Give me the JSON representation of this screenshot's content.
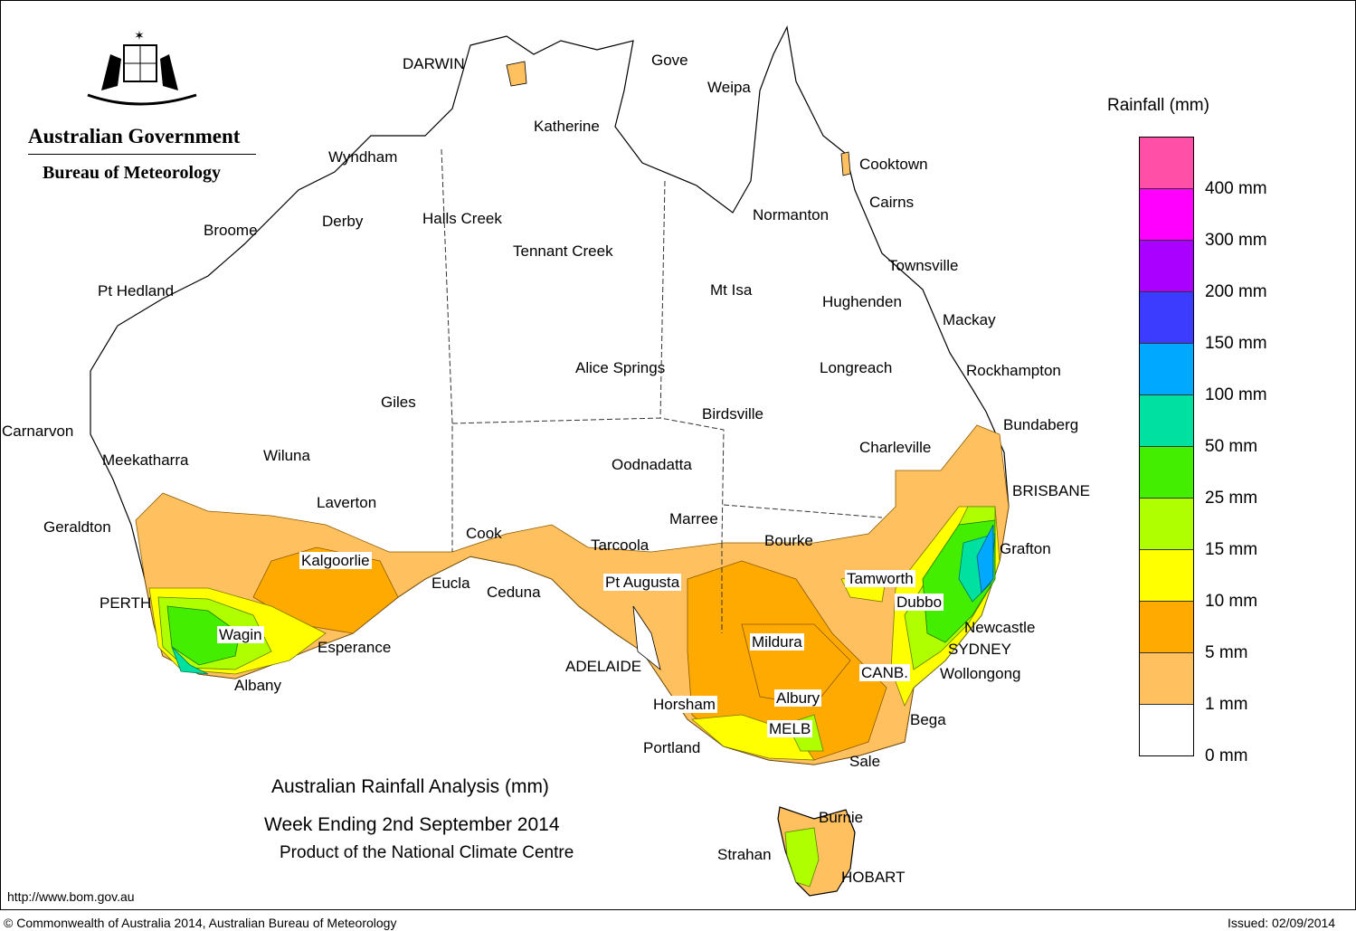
{
  "logo": {
    "government": "Australian Government",
    "agency": "Bureau of Meteorology"
  },
  "title": {
    "line1": "Australian Rainfall Analysis (mm)",
    "line2": "Week Ending 2nd September 2014",
    "line3": "Product of the National Climate Centre"
  },
  "legend": {
    "title": "Rainfall (mm)",
    "labels": [
      "400 mm",
      "300 mm",
      "200 mm",
      "150 mm",
      "100 mm",
      "50 mm",
      "25 mm",
      "15 mm",
      "10 mm",
      "5 mm",
      "1 mm",
      "0 mm"
    ],
    "colors": [
      "#ff4fa7",
      "#ff00ff",
      "#aa00ff",
      "#3c3cff",
      "#00a8ff",
      "#00e0a0",
      "#44ee00",
      "#b0ff00",
      "#ffff00",
      "#ffaa00",
      "#ffc060",
      "#ffffff"
    ]
  },
  "places": {
    "darwin": "DARWIN",
    "gove": "Gove",
    "weipa": "Weipa",
    "katherine": "Katherine",
    "wyndham": "Wyndham",
    "cooktown": "Cooktown",
    "cairns": "Cairns",
    "normanton": "Normanton",
    "broome": "Broome",
    "derby": "Derby",
    "halls_creek": "Halls Creek",
    "tennant_creek": "Tennant Creek",
    "townsville": "Townsville",
    "pt_hedland": "Pt Hedland",
    "mt_isa": "Mt Isa",
    "hughenden": "Hughenden",
    "mackay": "Mackay",
    "alice_springs": "Alice Springs",
    "longreach": "Longreach",
    "rockhampton": "Rockhampton",
    "giles": "Giles",
    "birdsville": "Birdsville",
    "carnarvon": "Carnarvon",
    "bundaberg": "Bundaberg",
    "meekatharra": "Meekatharra",
    "wiluna": "Wiluna",
    "oodnadatta": "Oodnadatta",
    "charleville": "Charleville",
    "brisbane": "BRISBANE",
    "laverton": "Laverton",
    "geraldton": "Geraldton",
    "marree": "Marree",
    "cook": "Cook",
    "tarcoola": "Tarcoola",
    "bourke": "Bourke",
    "grafton": "Grafton",
    "kalgoorlie": "Kalgoorlie",
    "eucla": "Eucla",
    "pt_augusta": "Pt Augusta",
    "tamworth": "Tamworth",
    "ceduna": "Ceduna",
    "perth": "PERTH",
    "dubbo": "Dubbo",
    "newcastle": "Newcastle",
    "wagin": "Wagin",
    "mildura": "Mildura",
    "esperance": "Esperance",
    "sydney": "SYDNEY",
    "adelaide": "ADELAIDE",
    "canberra": "CANB.",
    "wollongong": "Wollongong",
    "albany": "Albany",
    "albury": "Albury",
    "horsham": "Horsham",
    "bega": "Bega",
    "melbourne": "MELB",
    "portland": "Portland",
    "sale": "Sale",
    "burnie": "Burnie",
    "strahan": "Strahan",
    "hobart": "HOBART"
  },
  "footer": {
    "url": "http://www.bom.gov.au",
    "copyright": "© Commonwealth of Australia 2014, Australian Bureau of Meteorology",
    "issued": "Issued: 02/09/2014"
  }
}
